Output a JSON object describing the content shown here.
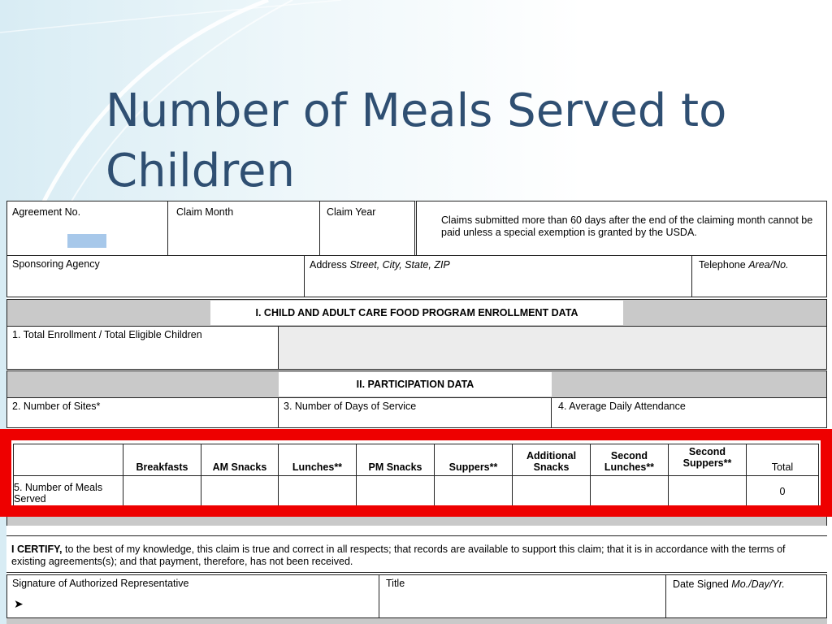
{
  "slide": {
    "title": "Number of Meals Served to Children"
  },
  "form": {
    "header": {
      "agreement_no": "Agreement No.",
      "claim_month": "Claim Month",
      "claim_year": "Claim Year",
      "claims_note": "Claims submitted more than 60 days after the end of the claiming month cannot be paid unless a special exemption is granted by the USDA."
    },
    "sponsor": {
      "sponsoring_agency": "Sponsoring Agency",
      "address_label": "Address",
      "address_hint": "Street, City, State, ZIP",
      "telephone_label": "Telephone",
      "telephone_hint": "Area/No."
    },
    "section1": {
      "title": "I. CHILD AND ADULT CARE FOOD PROGRAM ENROLLMENT DATA",
      "item1": "1. Total Enrollment / Total Eligible Children"
    },
    "section2": {
      "title": "II. PARTICIPATION DATA",
      "item2": "2. Number of Sites*",
      "item3": "3. Number of Days of Service",
      "item4": "4. Average Daily Attendance"
    },
    "meals": {
      "columns": [
        "Breakfasts",
        "AM Snacks",
        "Lunches**",
        "PM Snacks",
        "Suppers**",
        "Additional Snacks",
        "Second Lunches**",
        "Second Suppers**",
        "Total"
      ],
      "row_label": "5. Number of Meals Served",
      "total_value": "0"
    },
    "certify": {
      "lead": "I CERTIFY,",
      "text": " to the best of my knowledge, this claim is true and correct in all respects; that records are available to support this claim; that it is in accordance with the terms of existing agreements(s); and that payment, therefore, has not been received."
    },
    "signature": {
      "signature_label": "Signature of Authorized Representative",
      "arrow": "➤",
      "title_label": "Title",
      "date_label": "Date Signed",
      "date_hint": "Mo./Day/Yr."
    }
  },
  "colors": {
    "title": "#2f4f72",
    "highlight": "#ee0000",
    "section_gray": "#c9c9c9"
  }
}
